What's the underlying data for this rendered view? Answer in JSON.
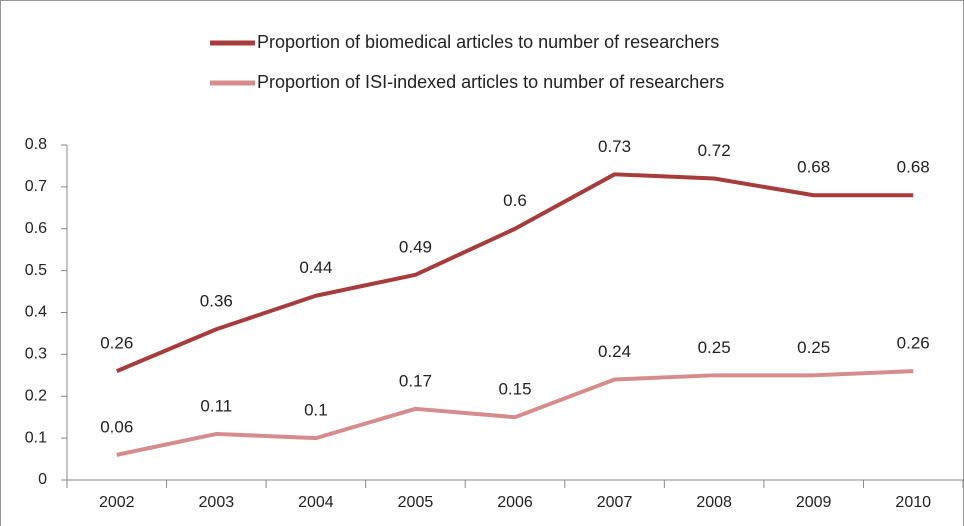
{
  "chart_data": {
    "type": "line",
    "categories": [
      "2002",
      "2003",
      "2004",
      "2005",
      "2006",
      "2007",
      "2008",
      "2009",
      "2010"
    ],
    "series": [
      {
        "name": "Proportion of biomedical articles to number of researchers",
        "color": "#a63c3c",
        "values": [
          0.26,
          0.36,
          0.44,
          0.49,
          0.6,
          0.73,
          0.72,
          0.68,
          0.68
        ]
      },
      {
        "name": "Proportion of ISI-indexed articles to number of researchers",
        "color": "#d68c8c",
        "values": [
          0.06,
          0.11,
          0.1,
          0.17,
          0.15,
          0.24,
          0.25,
          0.25,
          0.26
        ]
      }
    ],
    "ylim": [
      0,
      0.8
    ],
    "yticks": [
      0,
      0.1,
      0.2,
      0.3,
      0.4,
      0.5,
      0.6,
      0.7,
      0.8
    ],
    "grid": false,
    "legend": "top"
  }
}
